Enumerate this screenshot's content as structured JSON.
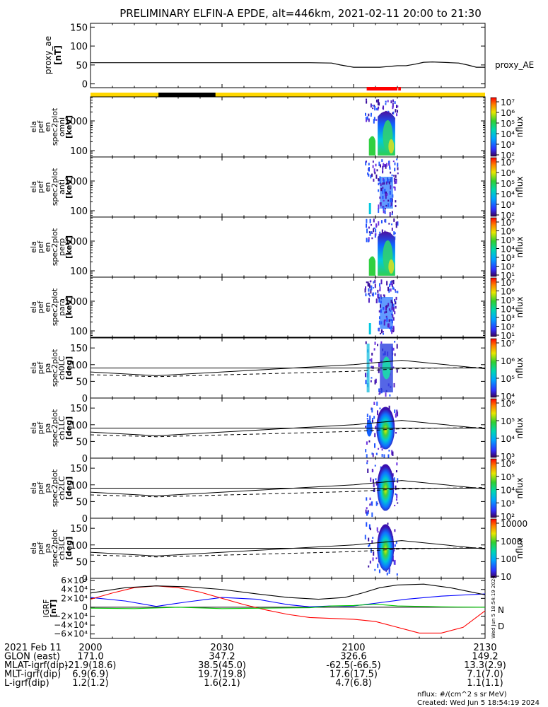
{
  "title": "PRELIMINARY ELFIN-A EPDE, alt=446km, 2021-02-11 20:00 to 21:30",
  "colors": {
    "yellow_bar": "#ffd700",
    "black_bar": "#000000",
    "red_bar": "#ff0000",
    "igrf_N": "#0000ff",
    "igrf_D": "#ff0000",
    "igrf_Z": "#00cc00"
  },
  "chart_data": [
    {
      "type": "line",
      "name": "proxy_ae_panel",
      "ylabel": "proxy_ae [nT]",
      "ylim": [
        -10,
        160
      ],
      "yticks": [
        "0",
        "50",
        "100",
        "150"
      ],
      "xlim": [
        0,
        90
      ],
      "series": [
        {
          "name": "proxy_AE",
          "x": [
            0,
            10,
            20,
            30,
            40,
            50,
            55,
            57,
            60,
            62,
            66,
            69,
            70,
            72,
            74,
            76,
            78,
            80,
            82,
            84,
            86,
            88,
            90
          ],
          "y": [
            56,
            56,
            56,
            56,
            56,
            56,
            55,
            50,
            44,
            44,
            44,
            47,
            48,
            48,
            52,
            57,
            58,
            57,
            56,
            55,
            50,
            44,
            44
          ]
        }
      ]
    },
    {
      "type": "heatmap",
      "name": "ela_pef_en_spec2plot_omni",
      "ylabel": [
        "ela",
        "pef",
        "en",
        "spec2plot",
        "omni",
        "[keV]"
      ],
      "yticks": [
        "100",
        "1000"
      ],
      "cbar_label": "nflux",
      "cbar_ticks": [
        "10²",
        "10³",
        "10⁴",
        "10⁵",
        "10⁶",
        "10⁷"
      ]
    },
    {
      "type": "heatmap",
      "name": "ela_pef_en_spec2plot_anti",
      "ylabel": [
        "ela",
        "pef",
        "en",
        "spec2plot",
        "anti",
        "[keV]"
      ],
      "yticks": [
        "100",
        "1000"
      ],
      "cbar_label": "nflux",
      "cbar_ticks": [
        "10²",
        "10³",
        "10⁴",
        "10⁵",
        "10⁶",
        "10⁷"
      ]
    },
    {
      "type": "heatmap",
      "name": "ela_pef_en_spec2plot_perp",
      "ylabel": [
        "ela",
        "pef",
        "en",
        "spec2plot",
        "perp",
        "[keV]"
      ],
      "yticks": [
        "100",
        "1000"
      ],
      "cbar_label": "nflux",
      "cbar_ticks": [
        "10¹",
        "10²",
        "10³",
        "10⁴",
        "10⁵",
        "10⁶",
        "10⁷"
      ]
    },
    {
      "type": "heatmap",
      "name": "ela_pef_en_spec2plot_para",
      "ylabel": [
        "ela",
        "pef",
        "en",
        "spec2plot",
        "para",
        "[keV]"
      ],
      "yticks": [
        "100",
        "1000"
      ],
      "cbar_label": "nflux",
      "cbar_ticks": [
        "10¹",
        "10²",
        "10³",
        "10⁴",
        "10⁵",
        "10⁶",
        "10⁷"
      ]
    },
    {
      "type": "heatmap",
      "name": "ela_pef_pa_spec2plot_ch0LC",
      "ylabel": [
        "ela",
        "pef",
        "pa",
        "spec2plot",
        "ch0LC",
        "[deg]"
      ],
      "ylim": [
        0,
        180
      ],
      "yticks": [
        "0",
        "50",
        "100",
        "150"
      ],
      "cbar_label": "nflux",
      "cbar_ticks": [
        "10⁴",
        "10⁵",
        "10⁶",
        "10⁷"
      ],
      "loss_cone": {
        "x": [
          0,
          15,
          60,
          71,
          90
        ],
        "y": [
          78,
          67,
          100,
          113,
          88
        ]
      },
      "anti_loss_cone": {
        "x": [
          0,
          15,
          60,
          71,
          90
        ],
        "y": [
          70,
          64,
          80,
          88,
          92
        ]
      }
    },
    {
      "type": "heatmap",
      "name": "ela_pef_pa_spec2plot_ch1LC",
      "ylabel": [
        "ela",
        "pef",
        "pa",
        "spec2plot",
        "ch1LC",
        "[deg]"
      ],
      "ylim": [
        0,
        180
      ],
      "yticks": [
        "0",
        "50",
        "100",
        "150"
      ],
      "cbar_label": "nflux",
      "cbar_ticks": [
        "10³",
        "10⁴",
        "10⁵",
        "10⁶"
      ],
      "loss_cone": {
        "x": [
          0,
          15,
          60,
          71,
          90
        ],
        "y": [
          78,
          67,
          100,
          113,
          88
        ]
      },
      "anti_loss_cone": {
        "x": [
          0,
          15,
          60,
          71,
          90
        ],
        "y": [
          70,
          64,
          80,
          88,
          92
        ]
      }
    },
    {
      "type": "heatmap",
      "name": "ela_pef_pa_spec2plot_ch2LC",
      "ylabel": [
        "ela",
        "pef",
        "pa",
        "spec2plot",
        "ch2LC",
        "[deg]"
      ],
      "ylim": [
        0,
        180
      ],
      "yticks": [
        "0",
        "50",
        "100",
        "150"
      ],
      "cbar_label": "nflux",
      "cbar_ticks": [
        "10²",
        "10³",
        "10⁴",
        "10⁵",
        "10⁶"
      ],
      "loss_cone": {
        "x": [
          0,
          15,
          60,
          71,
          90
        ],
        "y": [
          78,
          67,
          100,
          113,
          88
        ]
      },
      "anti_loss_cone": {
        "x": [
          0,
          15,
          60,
          71,
          90
        ],
        "y": [
          70,
          64,
          80,
          88,
          92
        ]
      }
    },
    {
      "type": "heatmap",
      "name": "ela_pef_pa_spec2plot_ch3LC",
      "ylabel": [
        "ela",
        "pef",
        "pa",
        "spec2plot",
        "ch3LC",
        "[deg]"
      ],
      "ylim": [
        0,
        180
      ],
      "yticks": [
        "0",
        "50",
        "100",
        "150"
      ],
      "cbar_label": "nflux",
      "cbar_ticks": [
        "10",
        "100",
        "1000",
        "10000"
      ],
      "loss_cone": {
        "x": [
          0,
          15,
          60,
          71,
          90
        ],
        "y": [
          78,
          67,
          100,
          113,
          88
        ]
      },
      "anti_loss_cone": {
        "x": [
          0,
          15,
          60,
          71,
          90
        ],
        "y": [
          70,
          64,
          80,
          88,
          92
        ]
      }
    },
    {
      "type": "line",
      "name": "igrf_panel",
      "ylabel": [
        "IGRF",
        "[nT]"
      ],
      "ylim": [
        -70000,
        65000
      ],
      "yticks": [
        "6×10⁴",
        "4×10⁴",
        "2×10⁴",
        "0",
        "−2×10⁴",
        "−4×10⁴",
        "−6×10⁴"
      ],
      "ytick_values": [
        60000,
        40000,
        20000,
        0,
        -20000,
        -40000,
        -60000
      ],
      "legend": [
        "N",
        "D"
      ],
      "side_text": "Wed Jun  5 18:54:19 2024",
      "series": [
        {
          "name": "N",
          "color": "#0000ff",
          "x": [
            0,
            8,
            15,
            22,
            30,
            38,
            45,
            50,
            55,
            58,
            60,
            65,
            72,
            80,
            90
          ],
          "y": [
            22000,
            14000,
            2000,
            12000,
            22000,
            18000,
            6000,
            1000,
            3000,
            2500,
            3000,
            9000,
            18000,
            25000,
            30000
          ]
        },
        {
          "name": "D",
          "color": "#ff0000",
          "x": [
            0,
            5,
            10,
            15,
            20,
            25,
            30,
            35,
            40,
            45,
            50,
            55,
            60,
            65,
            70,
            75,
            80,
            85,
            90
          ],
          "y": [
            18000,
            32000,
            44000,
            48000,
            44000,
            34000,
            20000,
            6000,
            -6000,
            -16000,
            -23000,
            -25000,
            -27000,
            -32000,
            -45000,
            -58000,
            -58000,
            -45000,
            -8000
          ]
        },
        {
          "name": "Z",
          "color": "#00cc00",
          "x": [
            0,
            10,
            20,
            30,
            40,
            50,
            55,
            60,
            65,
            70,
            80,
            90
          ],
          "y": [
            -2000,
            -3000,
            0,
            -3000,
            -2000,
            -1000,
            3000,
            4000,
            7000,
            3000,
            1000,
            0
          ]
        },
        {
          "name": "total",
          "color": "#000000",
          "x": [
            0,
            8,
            15,
            22,
            30,
            38,
            45,
            52,
            58,
            62,
            66,
            70,
            76,
            82,
            90
          ],
          "y": [
            32000,
            44000,
            48000,
            46000,
            40000,
            30000,
            22000,
            18000,
            22000,
            32000,
            44000,
            50000,
            52000,
            44000,
            28000
          ]
        }
      ]
    }
  ],
  "bottom": {
    "rows": [
      {
        "label": "2021 Feb 11",
        "values": [
          "2000",
          "2030",
          "2100",
          "2130"
        ]
      },
      {
        "label": "GLON (east)",
        "values": [
          "171.0",
          "347.2",
          "326.6",
          "149.2"
        ]
      },
      {
        "label": "MLAT-igrf(dip)",
        "values": [
          "-21.9(18.6)",
          "38.5(45.0)",
          "-62.5(-66.5)",
          "13.3(2.9)"
        ]
      },
      {
        "label": "MLT-igrf(dip)",
        "values": [
          "6.9(6.9)",
          "19.7(19.8)",
          "17.6(17.5)",
          "7.1(7.0)"
        ]
      },
      {
        "label": "L-igrf(dip)",
        "values": [
          "1.2(1.2)",
          "1.6(2.1)",
          "4.7(6.8)",
          "1.1(1.1)"
        ]
      }
    ],
    "footer_units": "nflux: #/(cm^2 s sr MeV)",
    "footer_created": "Created: Wed Jun  5 18:54:19 2024"
  }
}
